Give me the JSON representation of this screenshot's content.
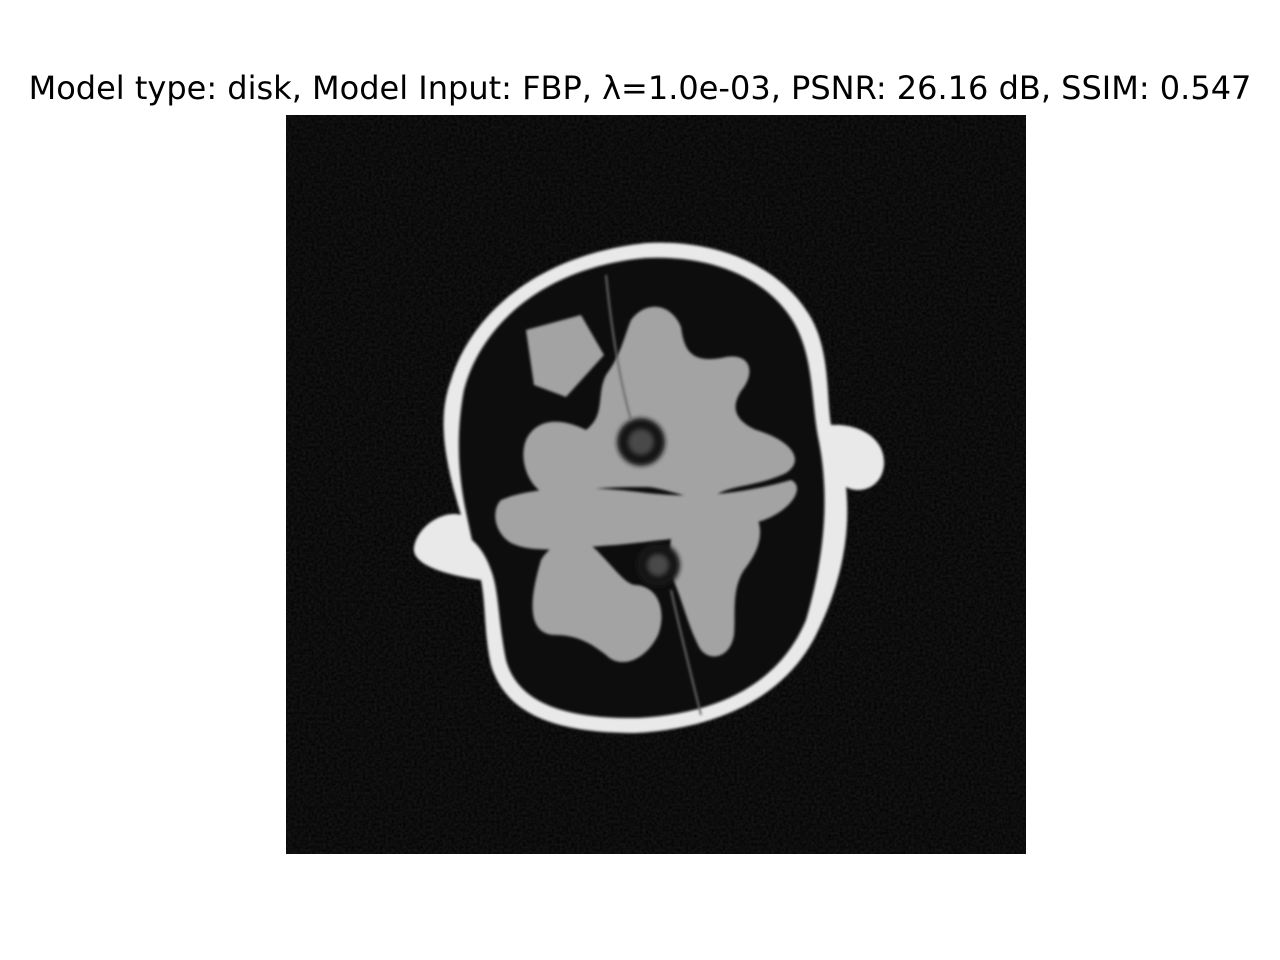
{
  "figure": {
    "title": "Model type: disk, Model Input: FBP, λ=1.0e-03, PSNR: 26.16 dB, SSIM: 0.547",
    "image_description_name": "ct-brain-reconstruction"
  },
  "colors": {
    "background": "#ffffff",
    "image_background": "#000000",
    "skull": "#e6e6e6",
    "tissue": "#a0a0a0",
    "fluid": "#0a0a0a"
  }
}
